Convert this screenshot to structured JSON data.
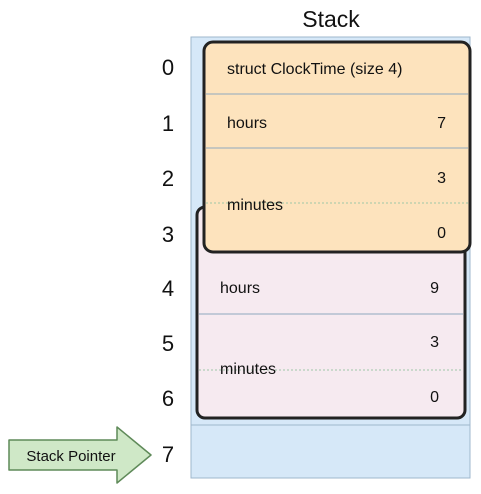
{
  "title": "Stack",
  "indices": [
    "0",
    "1",
    "2",
    "3",
    "4",
    "5",
    "6",
    "7"
  ],
  "outer_struct": {
    "header": "struct ClockTime (size 4)",
    "hours_label": "hours",
    "hours_value": "7",
    "minutes_label": "minutes",
    "minutes_high": "3",
    "minutes_low": "0"
  },
  "inner_struct": {
    "hours_label": "hours",
    "hours_value": "9",
    "minutes_label": "minutes",
    "minutes_high": "3",
    "minutes_low": "0"
  },
  "stack_pointer": {
    "label": "Stack Pointer"
  },
  "colors": {
    "stack_bg": "#d6e8f8",
    "stack_border": "#9fb7cc",
    "outer_fill": "#fde3bd",
    "inner_fill": "#f6eaf0",
    "struct_border": "#222222",
    "divider": "#8ea8be",
    "arrow_fill": "#cfe8c7",
    "arrow_border": "#5f8a59"
  }
}
